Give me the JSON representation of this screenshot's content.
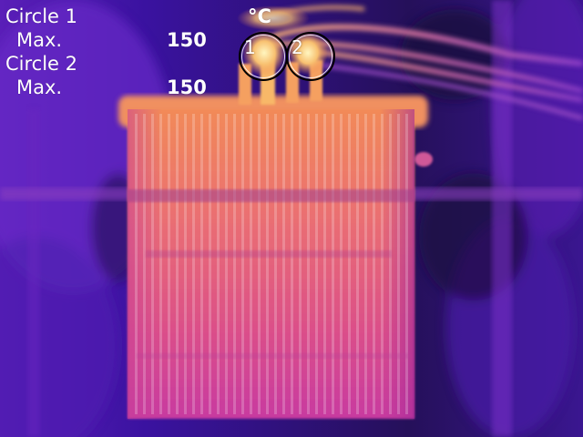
{
  "readouts": {
    "unit": "°C",
    "circle1": {
      "name": "Circle 1",
      "stat_label": "Max.",
      "value": "150"
    },
    "circle2": {
      "name": "Circle 2",
      "stat_label": "Max.",
      "value": "150"
    }
  },
  "markers": [
    {
      "id": "1"
    },
    {
      "id": "2"
    }
  ],
  "palette": {
    "cold": "#1a0838",
    "cool": "#4a18a8",
    "mid": "#8a2ad0",
    "warm": "#e0509a",
    "hot": "#f58a50",
    "hottest": "#fff0b0"
  }
}
